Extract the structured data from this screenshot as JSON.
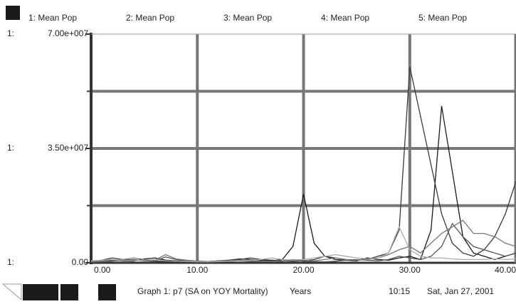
{
  "chart_data": {
    "type": "line",
    "title": "Graph 1: p7 (SA on YOY Mortality)",
    "x_label": "Years",
    "axis_prefix": "1:",
    "time": "10:15",
    "date": "Sat, Jan 27, 2001",
    "x": [
      0,
      1,
      2,
      3,
      4,
      5,
      6,
      7,
      8,
      9,
      10,
      11,
      12,
      13,
      14,
      15,
      16,
      17,
      18,
      19,
      20,
      21,
      22,
      23,
      24,
      25,
      26,
      27,
      28,
      29,
      30,
      31,
      32,
      33,
      34,
      35,
      36,
      37,
      38,
      39,
      40
    ],
    "xlim": [
      0,
      40
    ],
    "xticks": [
      {
        "value": 0,
        "label": "0.00"
      },
      {
        "value": 10,
        "label": "10.00"
      },
      {
        "value": 20,
        "label": "20.00"
      },
      {
        "value": 30,
        "label": "30.00"
      },
      {
        "value": 40,
        "label": "40.00"
      }
    ],
    "ylim": [
      0,
      70000000
    ],
    "yticks": [
      {
        "value": 0,
        "label": "0.00"
      },
      {
        "value": 35000000,
        "label": "3.50e+007"
      },
      {
        "value": 70000000,
        "label": "7.00e+007"
      }
    ],
    "grid": true,
    "series": [
      {
        "name": "1: Mean Pop",
        "color": "#1a1a1a",
        "values": [
          300000,
          500000,
          800000,
          600000,
          500000,
          1200000,
          1500000,
          800000,
          600000,
          500000,
          400000,
          300000,
          500000,
          800000,
          1200000,
          1000000,
          800000,
          600000,
          1000000,
          5000000,
          21000000,
          6000000,
          2000000,
          1000000,
          800000,
          600000,
          1500000,
          1000000,
          800000,
          1500000,
          2000000,
          1000000,
          10000000,
          48000000,
          28000000,
          8000000,
          3000000,
          2000000,
          1000000,
          2000000,
          3000000
        ]
      },
      {
        "name": "2: Mean Pop",
        "color": "#3a3a3a",
        "values": [
          500000,
          800000,
          1500000,
          1000000,
          800000,
          600000,
          500000,
          400000,
          300000,
          500000,
          500000,
          400000,
          600000,
          800000,
          1000000,
          1500000,
          1000000,
          800000,
          600000,
          500000,
          600000,
          1000000,
          2000000,
          1500000,
          1000000,
          800000,
          1000000,
          2000000,
          3000000,
          10000000,
          60000000,
          45000000,
          30000000,
          15000000,
          6000000,
          3000000,
          2000000,
          4000000,
          8000000,
          15000000,
          25000000
        ]
      },
      {
        "name": "3: Mean Pop",
        "color": "#555555",
        "values": [
          200000,
          300000,
          500000,
          800000,
          1000000,
          600000,
          500000,
          1800000,
          1000000,
          500000,
          300000,
          200000,
          300000,
          500000,
          600000,
          500000,
          400000,
          300000,
          500000,
          800000,
          500000,
          400000,
          300000,
          500000,
          800000,
          1000000,
          800000,
          600000,
          1000000,
          2000000,
          1500000,
          1000000,
          2000000,
          5000000,
          12000000,
          8000000,
          5000000,
          4000000,
          3000000,
          2000000,
          3000000
        ]
      },
      {
        "name": "4: Mean Pop",
        "color": "#777777",
        "values": [
          400000,
          500000,
          600000,
          1000000,
          1500000,
          1000000,
          800000,
          2500000,
          1200000,
          800000,
          500000,
          400000,
          500000,
          600000,
          800000,
          600000,
          500000,
          400000,
          600000,
          1000000,
          800000,
          600000,
          1000000,
          1500000,
          1000000,
          800000,
          1000000,
          1500000,
          2500000,
          4000000,
          5000000,
          3000000,
          6000000,
          9000000,
          11000000,
          13000000,
          9000000,
          9000000,
          8000000,
          6000000,
          5000000
        ]
      },
      {
        "name": "5: Mean Pop",
        "color": "#aaaaaa",
        "values": [
          600000,
          800000,
          1000000,
          800000,
          600000,
          800000,
          1000000,
          600000,
          500000,
          400000,
          300000,
          300000,
          400000,
          500000,
          600000,
          800000,
          1000000,
          1500000,
          1000000,
          800000,
          1000000,
          1500000,
          2000000,
          2500000,
          2000000,
          1500000,
          1200000,
          1500000,
          3000000,
          11000000,
          4000000,
          2000000,
          1500000,
          1500000,
          1200000,
          1000000,
          1000000,
          1000000,
          1200000,
          1000000,
          1200000
        ]
      }
    ]
  }
}
